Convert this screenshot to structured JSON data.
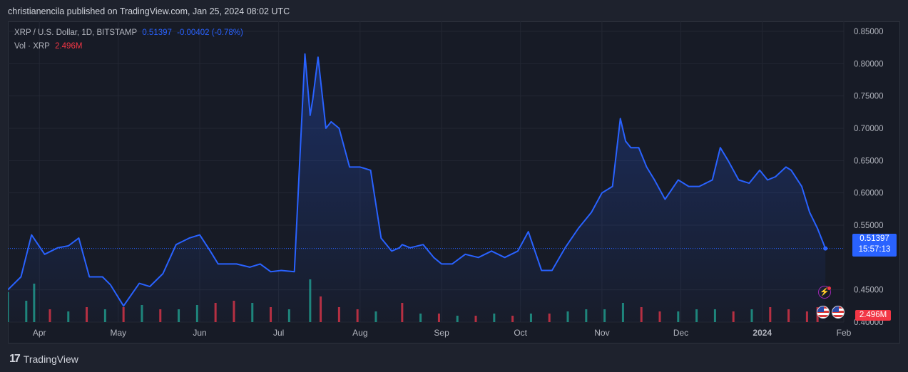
{
  "header": {
    "published_text": "christianencila published on TradingView.com, Jan 25, 2024 08:02 UTC"
  },
  "legend": {
    "symbol": "XRP / U.S. Dollar, 1D, BITSTAMP",
    "last_price": "0.51397",
    "change": "-0.00402 (-0.78%)",
    "volume_label": "Vol · XRP",
    "volume_value": "2.496M"
  },
  "badges": {
    "price": "0.51397",
    "countdown": "15:57:13",
    "volume": "2.496M"
  },
  "footer": {
    "brand": "TradingView"
  },
  "colors": {
    "line": "#2962ff",
    "up_volume": "#22ab94",
    "down_volume": "#f23645",
    "background": "#171b26",
    "text": "#b2b5be"
  },
  "chart_data": {
    "type": "line",
    "series": [
      {
        "name": "XRP / U.S. Dollar",
        "x": [
          "2023-03-20",
          "2023-03-25",
          "2023-03-29",
          "2023-04-03",
          "2023-04-08",
          "2023-04-12",
          "2023-04-16",
          "2023-04-20",
          "2023-04-25",
          "2023-04-28",
          "2023-05-03",
          "2023-05-09",
          "2023-05-13",
          "2023-05-18",
          "2023-05-23",
          "2023-05-28",
          "2023-06-01",
          "2023-06-05",
          "2023-06-08",
          "2023-06-12",
          "2023-06-15",
          "2023-06-20",
          "2023-06-24",
          "2023-06-28",
          "2023-07-02",
          "2023-07-07",
          "2023-07-11",
          "2023-07-13",
          "2023-07-14",
          "2023-07-16",
          "2023-07-19",
          "2023-07-21",
          "2023-07-24",
          "2023-07-28",
          "2023-08-01",
          "2023-08-05",
          "2023-08-09",
          "2023-08-13",
          "2023-08-16",
          "2023-08-17",
          "2023-08-20",
          "2023-08-25",
          "2023-08-29",
          "2023-09-01",
          "2023-09-05",
          "2023-09-10",
          "2023-09-15",
          "2023-09-20",
          "2023-09-25",
          "2023-09-30",
          "2023-10-04",
          "2023-10-09",
          "2023-10-13",
          "2023-10-18",
          "2023-10-23",
          "2023-10-28",
          "2023-11-01",
          "2023-11-05",
          "2023-11-08",
          "2023-11-10",
          "2023-11-12",
          "2023-11-15",
          "2023-11-18",
          "2023-11-21",
          "2023-11-25",
          "2023-11-30",
          "2023-12-04",
          "2023-12-08",
          "2023-12-13",
          "2023-12-16",
          "2023-12-19",
          "2023-12-23",
          "2023-12-27",
          "2023-12-31",
          "2024-01-03",
          "2024-01-06",
          "2024-01-10",
          "2024-01-12",
          "2024-01-16",
          "2024-01-19",
          "2024-01-22",
          "2024-01-25"
        ],
        "values": [
          0.45,
          0.47,
          0.535,
          0.505,
          0.515,
          0.518,
          0.53,
          0.47,
          0.47,
          0.458,
          0.425,
          0.46,
          0.455,
          0.475,
          0.52,
          0.53,
          0.535,
          0.51,
          0.49,
          0.49,
          0.49,
          0.485,
          0.49,
          0.478,
          0.48,
          0.478,
          0.815,
          0.72,
          0.745,
          0.81,
          0.7,
          0.71,
          0.7,
          0.64,
          0.64,
          0.635,
          0.53,
          0.51,
          0.515,
          0.52,
          0.515,
          0.52,
          0.5,
          0.49,
          0.49,
          0.505,
          0.5,
          0.51,
          0.5,
          0.51,
          0.54,
          0.48,
          0.48,
          0.515,
          0.545,
          0.57,
          0.6,
          0.61,
          0.715,
          0.68,
          0.67,
          0.67,
          0.64,
          0.62,
          0.59,
          0.62,
          0.61,
          0.61,
          0.62,
          0.67,
          0.65,
          0.62,
          0.615,
          0.635,
          0.62,
          0.625,
          0.64,
          0.635,
          0.61,
          0.57,
          0.545,
          0.514
        ]
      }
    ],
    "volume": [
      {
        "x": "2023-03-20",
        "v": 0.7,
        "up": true
      },
      {
        "x": "2023-03-27",
        "v": 0.5,
        "up": true
      },
      {
        "x": "2023-03-30",
        "v": 0.9,
        "up": true
      },
      {
        "x": "2023-04-05",
        "v": 0.3,
        "up": false
      },
      {
        "x": "2023-04-12",
        "v": 0.25,
        "up": true
      },
      {
        "x": "2023-04-19",
        "v": 0.35,
        "up": false
      },
      {
        "x": "2023-04-26",
        "v": 0.3,
        "up": true
      },
      {
        "x": "2023-05-03",
        "v": 0.35,
        "up": false
      },
      {
        "x": "2023-05-10",
        "v": 0.4,
        "up": true
      },
      {
        "x": "2023-05-17",
        "v": 0.3,
        "up": false
      },
      {
        "x": "2023-05-24",
        "v": 0.3,
        "up": true
      },
      {
        "x": "2023-05-31",
        "v": 0.4,
        "up": true
      },
      {
        "x": "2023-06-07",
        "v": 0.45,
        "up": false
      },
      {
        "x": "2023-06-14",
        "v": 0.5,
        "up": false
      },
      {
        "x": "2023-06-21",
        "v": 0.45,
        "up": true
      },
      {
        "x": "2023-06-28",
        "v": 0.35,
        "up": false
      },
      {
        "x": "2023-07-05",
        "v": 0.3,
        "up": true
      },
      {
        "x": "2023-07-13",
        "v": 1.0,
        "up": true
      },
      {
        "x": "2023-07-17",
        "v": 0.6,
        "up": false
      },
      {
        "x": "2023-07-24",
        "v": 0.35,
        "up": false
      },
      {
        "x": "2023-07-31",
        "v": 0.3,
        "up": false
      },
      {
        "x": "2023-08-07",
        "v": 0.25,
        "up": true
      },
      {
        "x": "2023-08-17",
        "v": 0.45,
        "up": false
      },
      {
        "x": "2023-08-24",
        "v": 0.2,
        "up": true
      },
      {
        "x": "2023-08-31",
        "v": 0.2,
        "up": false
      },
      {
        "x": "2023-09-07",
        "v": 0.15,
        "up": true
      },
      {
        "x": "2023-09-14",
        "v": 0.15,
        "up": false
      },
      {
        "x": "2023-09-21",
        "v": 0.2,
        "up": true
      },
      {
        "x": "2023-09-28",
        "v": 0.15,
        "up": false
      },
      {
        "x": "2023-10-05",
        "v": 0.2,
        "up": true
      },
      {
        "x": "2023-10-12",
        "v": 0.2,
        "up": false
      },
      {
        "x": "2023-10-19",
        "v": 0.25,
        "up": true
      },
      {
        "x": "2023-10-26",
        "v": 0.3,
        "up": true
      },
      {
        "x": "2023-11-02",
        "v": 0.3,
        "up": true
      },
      {
        "x": "2023-11-09",
        "v": 0.45,
        "up": true
      },
      {
        "x": "2023-11-16",
        "v": 0.35,
        "up": false
      },
      {
        "x": "2023-11-23",
        "v": 0.25,
        "up": false
      },
      {
        "x": "2023-11-30",
        "v": 0.25,
        "up": true
      },
      {
        "x": "2023-12-07",
        "v": 0.3,
        "up": true
      },
      {
        "x": "2023-12-14",
        "v": 0.3,
        "up": true
      },
      {
        "x": "2023-12-21",
        "v": 0.25,
        "up": false
      },
      {
        "x": "2023-12-28",
        "v": 0.3,
        "up": true
      },
      {
        "x": "2024-01-04",
        "v": 0.35,
        "up": false
      },
      {
        "x": "2024-01-11",
        "v": 0.3,
        "up": false
      },
      {
        "x": "2024-01-18",
        "v": 0.25,
        "up": false
      },
      {
        "x": "2024-01-22",
        "v": 0.35,
        "up": false
      }
    ],
    "xlabels": [
      {
        "x": "2023-04-01",
        "label": "Apr"
      },
      {
        "x": "2023-05-01",
        "label": "May"
      },
      {
        "x": "2023-06-01",
        "label": "Jun"
      },
      {
        "x": "2023-07-01",
        "label": "Jul"
      },
      {
        "x": "2023-08-01",
        "label": "Aug"
      },
      {
        "x": "2023-09-01",
        "label": "Sep"
      },
      {
        "x": "2023-10-01",
        "label": "Oct"
      },
      {
        "x": "2023-11-01",
        "label": "Nov"
      },
      {
        "x": "2023-12-01",
        "label": "Dec"
      },
      {
        "x": "2024-01-01",
        "label": "2024"
      },
      {
        "x": "2024-02-01",
        "label": "Feb"
      }
    ],
    "yticks": [
      "0.85000",
      "0.80000",
      "0.75000",
      "0.70000",
      "0.65000",
      "0.60000",
      "0.55000",
      "0.45000",
      "0.40000"
    ],
    "ylim": [
      0.4,
      0.85
    ],
    "xlim": [
      "2023-03-20",
      "2024-02-01"
    ],
    "last_value": 0.51397,
    "grid": true,
    "axis_side": "right"
  }
}
